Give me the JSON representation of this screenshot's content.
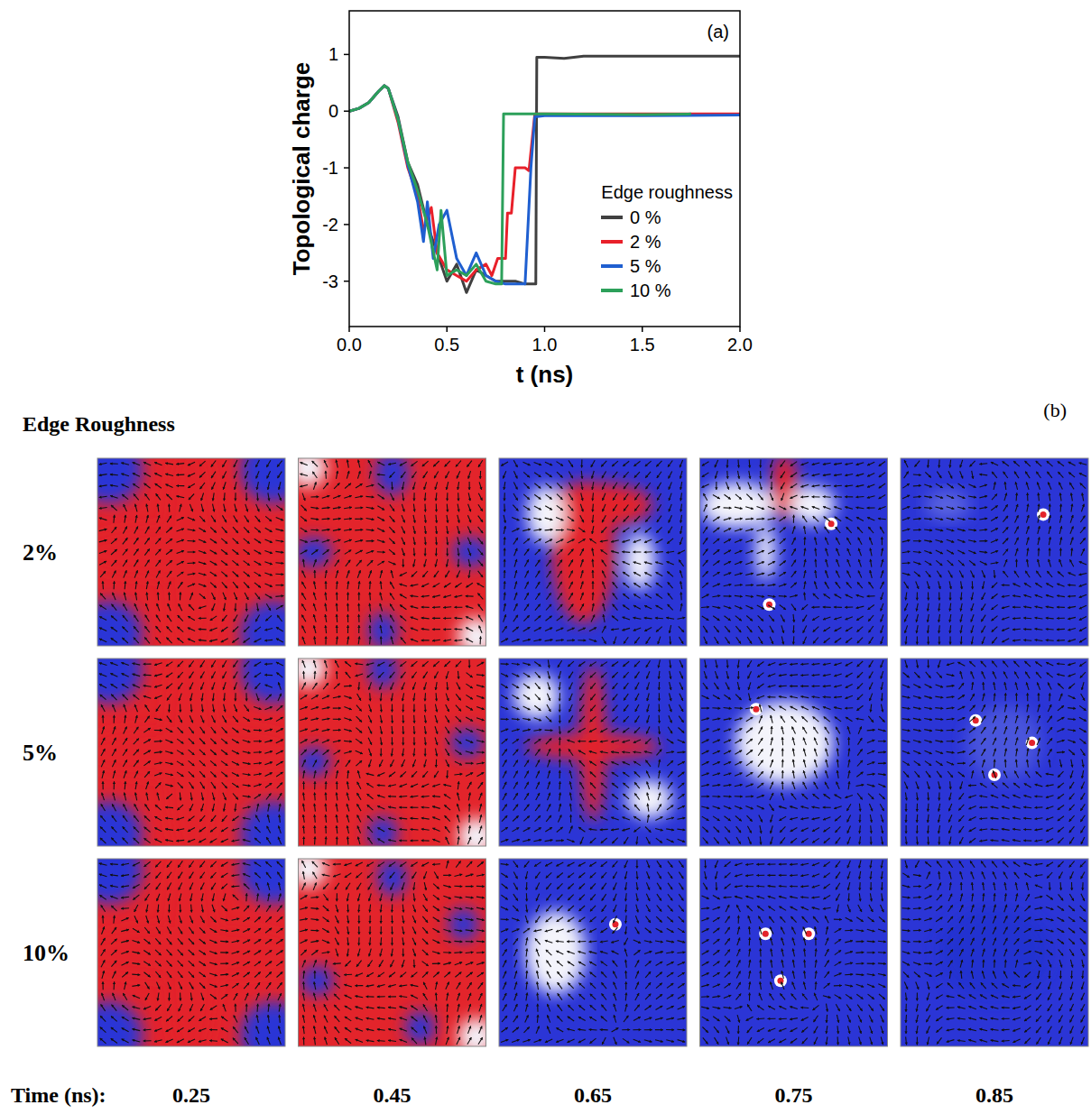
{
  "chart_data": [
    {
      "type": "line",
      "panel_label": "(a)",
      "x_label": "t (ns)",
      "y_label": "Topological charge",
      "legend_title": "Edge roughness",
      "legend": "right",
      "grid": false,
      "xlim": [
        0,
        2
      ],
      "xticks": [
        {
          "value": 0,
          "label": "0.0"
        },
        {
          "value": 0.5,
          "label": "0.5"
        },
        {
          "value": 1,
          "label": "1.0"
        },
        {
          "value": 1.5,
          "label": "1.5"
        },
        {
          "value": 2,
          "label": "2.0"
        }
      ],
      "ylim": [
        -3.8,
        1.77
      ],
      "yticks": [
        -3,
        -2,
        -1,
        0,
        1
      ],
      "series": [
        {
          "name": "0 %",
          "color": "#404040",
          "x": [
            0,
            0.05,
            0.1,
            0.15,
            0.18,
            0.2,
            0.25,
            0.3,
            0.35,
            0.4,
            0.45,
            0.5,
            0.55,
            0.6,
            0.65,
            0.7,
            0.75,
            0.8,
            0.85,
            0.9,
            0.955,
            0.96,
            1.0,
            1.1,
            1.2,
            1.5,
            2.0
          ],
          "values": [
            0,
            0.05,
            0.15,
            0.35,
            0.45,
            0.4,
            -0.1,
            -0.9,
            -1.3,
            -2.0,
            -2.5,
            -3.0,
            -2.7,
            -3.2,
            -2.8,
            -2.9,
            -3.0,
            -3.0,
            -3.0,
            -3.05,
            -3.05,
            0.95,
            0.95,
            0.93,
            0.97,
            0.97,
            0.97
          ]
        },
        {
          "name": "2 %",
          "color": "#e8202a",
          "x": [
            0,
            0.05,
            0.1,
            0.15,
            0.18,
            0.2,
            0.25,
            0.3,
            0.35,
            0.38,
            0.42,
            0.45,
            0.5,
            0.55,
            0.6,
            0.65,
            0.7,
            0.73,
            0.76,
            0.8,
            0.81,
            0.83,
            0.85,
            0.9,
            0.92,
            0.95,
            2.0
          ],
          "values": [
            0,
            0.05,
            0.15,
            0.35,
            0.45,
            0.4,
            -0.2,
            -1.0,
            -1.5,
            -2.1,
            -1.7,
            -2.5,
            -2.8,
            -2.9,
            -3.0,
            -2.8,
            -2.7,
            -2.9,
            -2.6,
            -2.6,
            -1.8,
            -1.8,
            -1.0,
            -1.0,
            -1.05,
            -0.05,
            -0.05
          ]
        },
        {
          "name": "5 %",
          "color": "#1f5fd0",
          "x": [
            0,
            0.05,
            0.1,
            0.15,
            0.18,
            0.2,
            0.25,
            0.3,
            0.35,
            0.38,
            0.4,
            0.43,
            0.46,
            0.5,
            0.55,
            0.6,
            0.65,
            0.7,
            0.75,
            0.8,
            0.9,
            0.93,
            0.95,
            1.0,
            1.5,
            2.0
          ],
          "values": [
            0,
            0.05,
            0.15,
            0.35,
            0.45,
            0.4,
            -0.15,
            -0.95,
            -1.6,
            -2.3,
            -1.6,
            -2.6,
            -2.0,
            -1.75,
            -2.6,
            -2.9,
            -2.5,
            -2.9,
            -3.0,
            -3.05,
            -3.05,
            -1.0,
            -0.1,
            -0.08,
            -0.08,
            -0.07
          ]
        },
        {
          "name": "10 %",
          "color": "#2ca05a",
          "x": [
            0,
            0.05,
            0.1,
            0.15,
            0.18,
            0.2,
            0.25,
            0.3,
            0.35,
            0.4,
            0.45,
            0.47,
            0.5,
            0.55,
            0.6,
            0.65,
            0.7,
            0.75,
            0.78,
            0.79,
            1.0,
            1.5,
            1.75
          ],
          "values": [
            0,
            0.05,
            0.15,
            0.35,
            0.45,
            0.4,
            -0.15,
            -0.9,
            -1.4,
            -2.0,
            -2.8,
            -1.75,
            -2.9,
            -2.8,
            -2.9,
            -2.7,
            -3.0,
            -3.05,
            -3.05,
            -0.05,
            -0.05,
            -0.06,
            -0.05
          ]
        }
      ]
    },
    {
      "type": "image_grid",
      "panel_label": "(b)",
      "title": "Edge Roughness",
      "rows": [
        "2%",
        "5%",
        "10%"
      ],
      "columns_title": "Time (ns):",
      "columns": [
        0.25,
        0.45,
        0.65,
        0.75,
        0.85
      ]
    }
  ]
}
